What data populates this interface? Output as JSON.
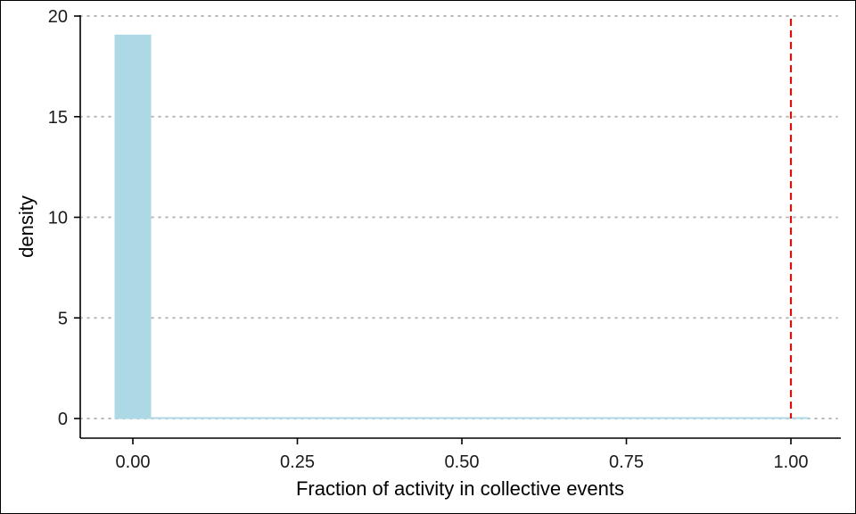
{
  "chart_data": {
    "type": "bar",
    "title": "",
    "xlabel": "Fraction of activity in collective events",
    "ylabel": "density",
    "xlim": [
      -0.055,
      1.065
    ],
    "ylim": [
      0,
      20
    ],
    "x_ticks": [
      0.0,
      0.25,
      0.5,
      0.75,
      1.0
    ],
    "x_tick_labels": [
      "0.00",
      "0.25",
      "0.50",
      "0.75",
      "1.00"
    ],
    "y_ticks": [
      0,
      5,
      10,
      15,
      20
    ],
    "y_tick_labels": [
      "0",
      "5",
      "10",
      "15",
      "20"
    ],
    "grid": "horizontal dotted",
    "bar_color": "#add8e6",
    "bins": [
      {
        "x0": -0.0278,
        "x1": 0.0278,
        "density": 19.1
      },
      {
        "x0": 0.0278,
        "x1": 1.0278,
        "density": 0.05
      }
    ],
    "reference_line": {
      "x": 1.0,
      "color": "#dd1111",
      "style": "dashed"
    }
  }
}
